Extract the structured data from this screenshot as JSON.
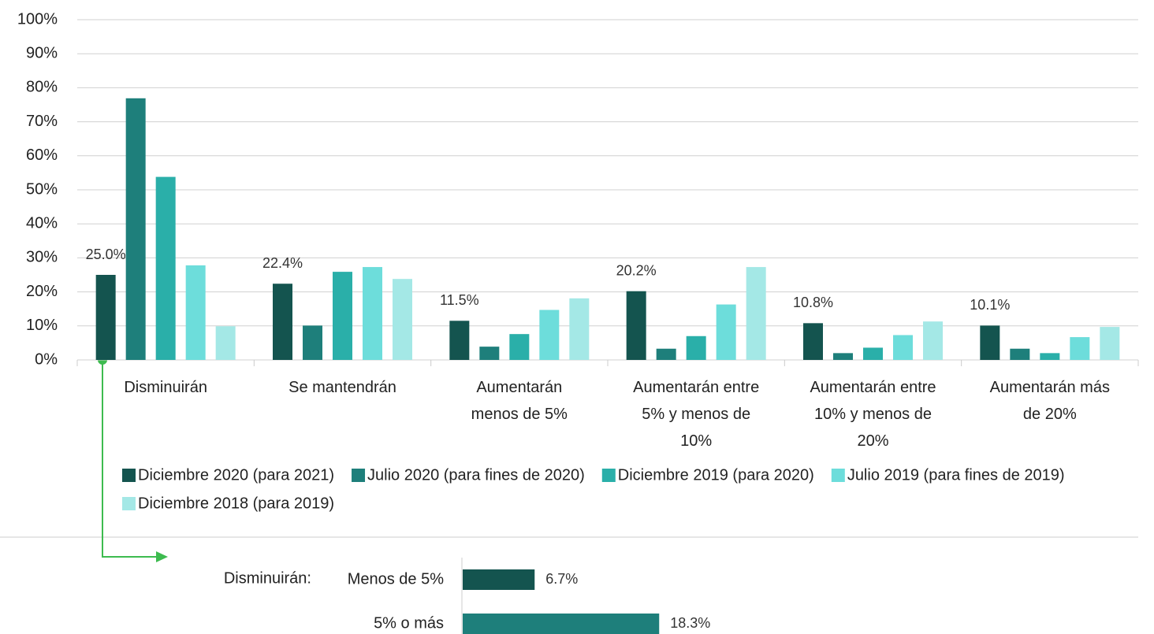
{
  "chart_data": [
    {
      "type": "bar",
      "categories": [
        "Disminuirán",
        "Se mantendrán",
        "Aumentarán menos de 5%",
        "Aumentarán entre 5% y menos de 10%",
        "Aumentarán entre 10% y menos de 20%",
        "Aumentarán más de 20%"
      ],
      "series": [
        {
          "name": "Diciembre 2020 (para 2021)",
          "color": "#14544f",
          "values": [
            25.0,
            22.4,
            11.5,
            20.2,
            10.8,
            10.1
          ],
          "value_labels": [
            "25.0%",
            "22.4%",
            "11.5%",
            "20.2%",
            "10.8%",
            "10.1%"
          ]
        },
        {
          "name": "Julio 2020 (para fines de 2020)",
          "color": "#1e7f7b",
          "values": [
            76.9,
            10.1,
            3.9,
            3.3,
            2.0,
            3.3
          ]
        },
        {
          "name": "Diciembre 2019 (para 2020)",
          "color": "#2aafa9",
          "values": [
            53.8,
            25.9,
            7.6,
            7.0,
            3.6,
            2.0
          ]
        },
        {
          "name": "Julio 2019 (para fines de 2019)",
          "color": "#6ddddb",
          "values": [
            27.8,
            27.3,
            14.7,
            16.3,
            7.3,
            6.7
          ]
        },
        {
          "name": "Diciembre 2018 (para 2019)",
          "color": "#a4e8e6",
          "values": [
            9.9,
            23.8,
            18.1,
            27.3,
            11.3,
            9.7
          ]
        }
      ],
      "ylim": [
        0,
        100
      ],
      "yticks": [
        {
          "value": 0,
          "label": "0%"
        },
        {
          "value": 10,
          "label": "10%"
        },
        {
          "value": 20,
          "label": "20%"
        },
        {
          "value": 30,
          "label": "30%"
        },
        {
          "value": 40,
          "label": "40%"
        },
        {
          "value": 50,
          "label": "50%"
        },
        {
          "value": 60,
          "label": "60%"
        },
        {
          "value": 70,
          "label": "70%"
        },
        {
          "value": 80,
          "label": "80%"
        },
        {
          "value": 90,
          "label": "90%"
        },
        {
          "value": 100,
          "label": "100%"
        }
      ],
      "grid": true,
      "legend": "bottom"
    },
    {
      "type": "hbar",
      "group_label": "Disminuirán:",
      "categories": [
        "Menos de 5%",
        "5% o más"
      ],
      "values": [
        6.7,
        18.3
      ],
      "value_labels": [
        "6.7%",
        "18.3%"
      ],
      "colors": [
        "#14544f",
        "#1e7f7b"
      ]
    }
  ]
}
